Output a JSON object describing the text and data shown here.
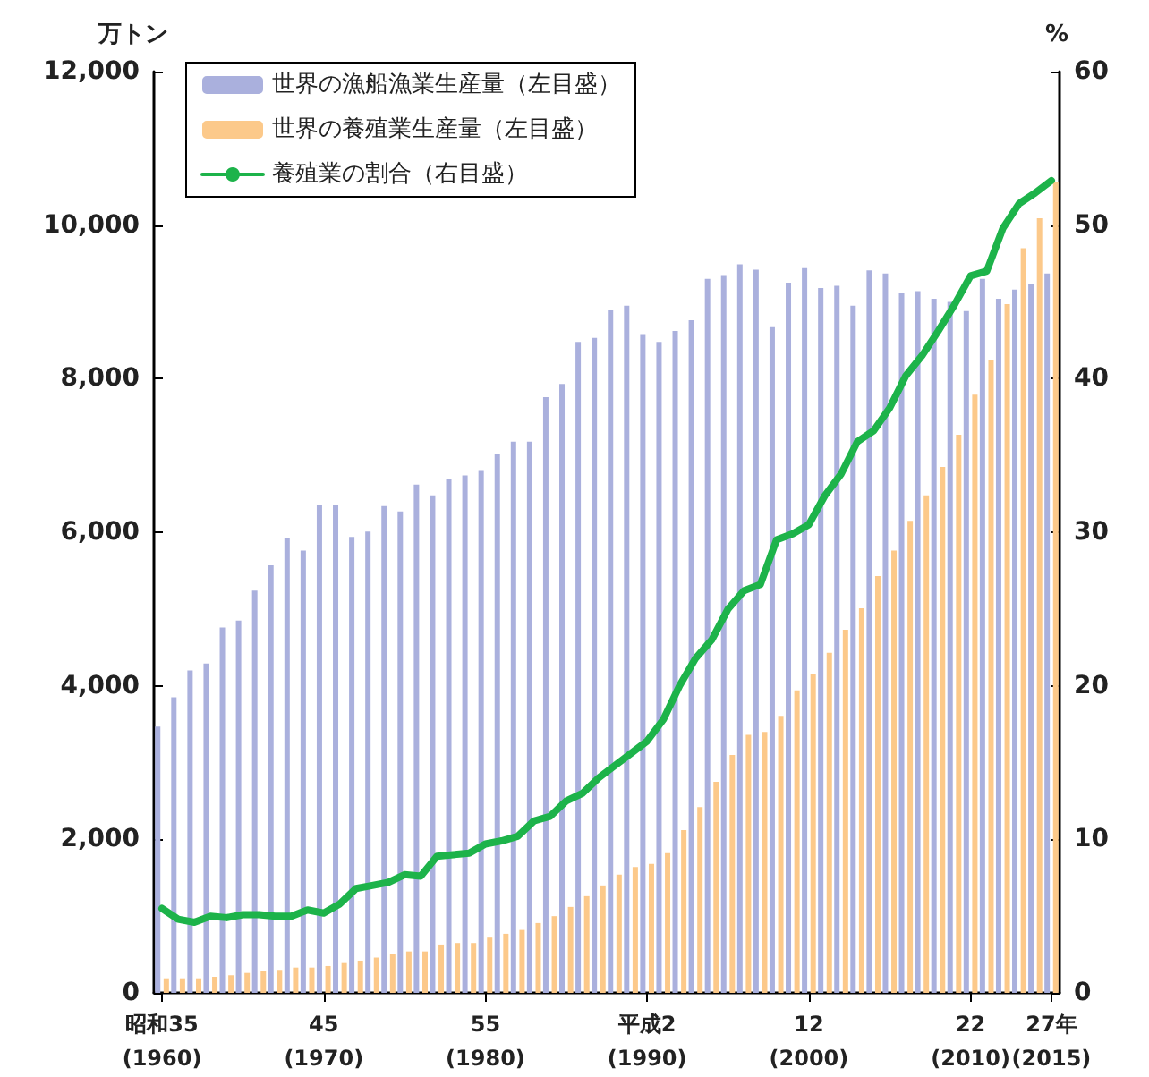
{
  "chart_data": {
    "type": "bar",
    "ylabel": "万トン",
    "y2label": "%",
    "categories": [
      "昭和35\n(1960)",
      null,
      null,
      null,
      null,
      null,
      null,
      null,
      null,
      null,
      "45\n(1970)",
      null,
      null,
      null,
      null,
      null,
      null,
      null,
      null,
      null,
      "55\n(1980)",
      null,
      null,
      null,
      null,
      null,
      null,
      null,
      null,
      null,
      "平成2\n(1990)",
      null,
      null,
      null,
      null,
      null,
      null,
      null,
      null,
      null,
      "12\n(2000)",
      null,
      null,
      null,
      null,
      null,
      null,
      null,
      null,
      null,
      "22\n(2010)",
      null,
      null,
      null,
      null,
      "27年\n(2015)"
    ],
    "series": [
      {
        "name": "世界の漁船漁業生産量（左目盛）",
        "color": "#aab0dd",
        "values": [
          3470,
          3850,
          4200,
          4290,
          4760,
          4850,
          5240,
          5570,
          5920,
          5760,
          6360,
          6360,
          5940,
          6010,
          6340,
          6270,
          6620,
          6480,
          6690,
          6740,
          6810,
          7020,
          7180,
          7180,
          7760,
          7930,
          8480,
          8530,
          8900,
          8950,
          8580,
          8480,
          8620,
          8760,
          9300,
          9350,
          9490,
          9420,
          8670,
          9250,
          9440,
          9180,
          9210,
          8950,
          9410,
          9370,
          9110,
          9140,
          9040,
          9000,
          8880,
          9300,
          9040,
          9160,
          9230,
          9370
        ]
      },
      {
        "name": "世界の養殖業生産量（左目盛）",
        "color": "#fcc98a",
        "values": [
          190,
          190,
          190,
          210,
          230,
          260,
          280,
          300,
          330,
          330,
          350,
          400,
          420,
          460,
          510,
          540,
          540,
          630,
          650,
          650,
          720,
          770,
          820,
          910,
          1000,
          1120,
          1260,
          1400,
          1540,
          1640,
          1680,
          1820,
          2120,
          2420,
          2750,
          3100,
          3360,
          3400,
          3610,
          3940,
          4150,
          4430,
          4730,
          5010,
          5430,
          5760,
          6150,
          6480,
          6850,
          7270,
          7790,
          8250,
          8970,
          9700,
          10090,
          10560
        ]
      },
      {
        "name": "養殖業の割合（右目盛）",
        "type": "line",
        "axis": "y2",
        "color": "#1db34a",
        "values": [
          5.5,
          4.8,
          4.6,
          5.0,
          4.9,
          5.1,
          5.1,
          5.0,
          5.0,
          5.4,
          5.2,
          5.8,
          6.8,
          7.0,
          7.2,
          7.7,
          7.6,
          8.9,
          9.0,
          9.1,
          9.7,
          9.9,
          10.2,
          11.2,
          11.5,
          12.5,
          13.0,
          14.0,
          14.8,
          15.6,
          16.4,
          17.8,
          20.0,
          21.8,
          23.0,
          25.0,
          26.2,
          26.6,
          29.5,
          29.9,
          30.5,
          32.4,
          33.8,
          35.9,
          36.6,
          38.1,
          40.2,
          41.5,
          43.1,
          44.8,
          46.7,
          47.0,
          49.8,
          51.4,
          52.1,
          52.9
        ]
      }
    ],
    "ylim": [
      0,
      12000
    ],
    "yticks": [
      0,
      {
        "value": 2000,
        "label": "2,000"
      },
      {
        "value": 4000,
        "label": "4,000"
      },
      {
        "value": 6000,
        "label": "6,000"
      },
      {
        "value": 8000,
        "label": "8,000"
      },
      {
        "value": 10000,
        "label": "10,000"
      },
      {
        "value": 12000,
        "label": "12,000"
      }
    ],
    "y2lim": [
      0,
      60
    ],
    "y2ticks": [
      0,
      10,
      20,
      30,
      40,
      50,
      60
    ],
    "legend": "top left",
    "grid": false,
    "marker": "none",
    "line_style": "solid"
  }
}
